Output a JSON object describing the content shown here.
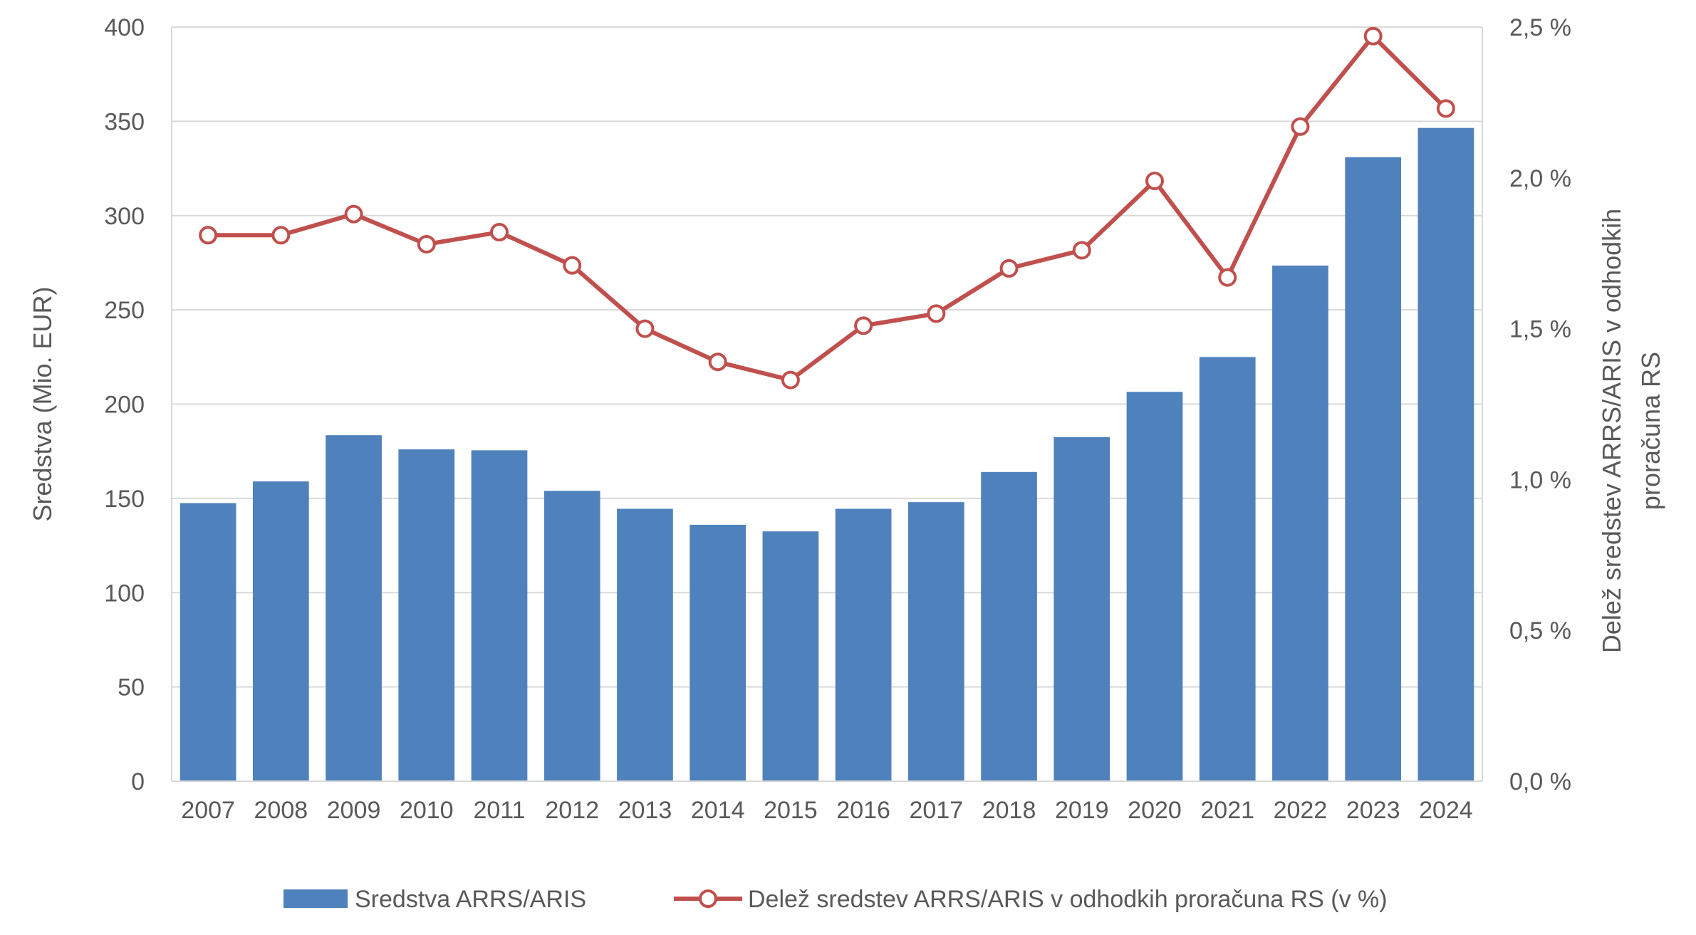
{
  "chart_data": {
    "type": "bar",
    "categories": [
      "2007",
      "2008",
      "2009",
      "2010",
      "2011",
      "2012",
      "2013",
      "2014",
      "2015",
      "2016",
      "2017",
      "2018",
      "2019",
      "2020",
      "2021",
      "2022",
      "2023",
      "2024"
    ],
    "series": [
      {
        "name": "Sredstva ARRS/ARIS",
        "type": "bar",
        "axis": "left",
        "color": "#4F81BD",
        "values": [
          147.5,
          159,
          183.5,
          176,
          175.5,
          154,
          144.5,
          136,
          132.5,
          144.5,
          148,
          164,
          182.5,
          206.5,
          225,
          273.5,
          331,
          346.5
        ]
      },
      {
        "name": "Delež sredstev ARRS/ARIS v odhodkih proračuna RS (v %)",
        "type": "line",
        "axis": "right",
        "color": "#C0504D",
        "values": [
          1.81,
          1.81,
          1.88,
          1.78,
          1.82,
          1.71,
          1.5,
          1.39,
          1.33,
          1.51,
          1.55,
          1.7,
          1.76,
          1.99,
          1.67,
          2.17,
          2.47,
          2.23
        ]
      }
    ],
    "y_left": {
      "label": "Sredstva (Mio. EUR)",
      "range": [
        0,
        400
      ],
      "ticks": [
        "0",
        "50",
        "100",
        "150",
        "200",
        "250",
        "300",
        "350",
        "400"
      ]
    },
    "y_right": {
      "label_lines": [
        "Delež sredstev ARRS/ARIS v odhodkih",
        "proračuna RS"
      ],
      "range": [
        0,
        2.5
      ],
      "ticks": [
        "0,0 %",
        "0,5 %",
        "1,0 %",
        "1,5 %",
        "2,0 %",
        "2,5 %"
      ]
    },
    "grid": true,
    "legend_position": "bottom"
  }
}
